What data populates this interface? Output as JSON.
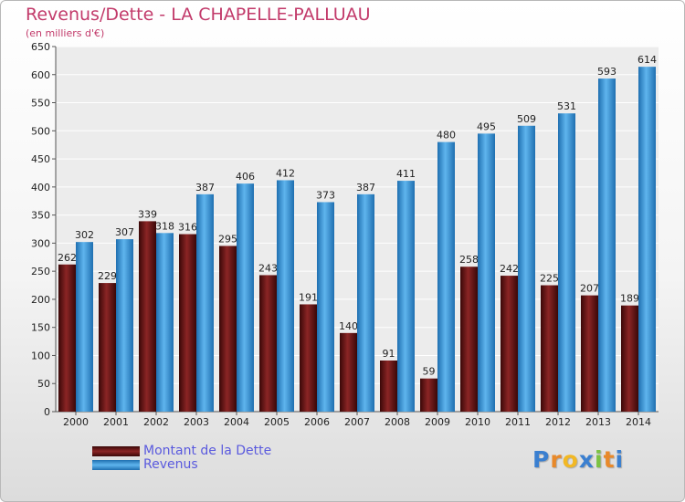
{
  "chart_data": {
    "type": "bar",
    "title": "Revenus/Dette - LA CHAPELLE-PALLUAU",
    "subtitle": "(en milliers d'€)",
    "categories": [
      "2000",
      "2001",
      "2002",
      "2003",
      "2004",
      "2005",
      "2006",
      "2007",
      "2008",
      "2009",
      "2010",
      "2011",
      "2012",
      "2013",
      "2014"
    ],
    "series": [
      {
        "name": "Montant de la Dette",
        "color": "#7a1a1a",
        "values": [
          262,
          229,
          339,
          316,
          295,
          243,
          191,
          140,
          91,
          59,
          258,
          242,
          225,
          207,
          189
        ]
      },
      {
        "name": "Revenus",
        "color": "#4aa3e6",
        "values": [
          302,
          307,
          318,
          387,
          406,
          412,
          373,
          387,
          411,
          480,
          495,
          509,
          531,
          593,
          614
        ]
      }
    ],
    "yticks": [
      0,
      50,
      100,
      150,
      200,
      250,
      300,
      350,
      400,
      450,
      500,
      550,
      600,
      650
    ],
    "ylim": [
      0,
      650
    ],
    "grid": true,
    "legend_position": "bottom-left"
  },
  "legend": {
    "items": [
      {
        "label": "Montant de la Dette",
        "color": "#7a1a1a"
      },
      {
        "label": "Revenus",
        "color": "#4aa3e6"
      }
    ]
  },
  "logo": {
    "letters": [
      "P",
      "r",
      "o",
      "x",
      "i",
      "t",
      "i"
    ],
    "colors": [
      "#3a7fd0",
      "#e8892a",
      "#f2b824",
      "#3a7fd0",
      "#7cc242",
      "#e8892a",
      "#3a7fd0"
    ]
  }
}
